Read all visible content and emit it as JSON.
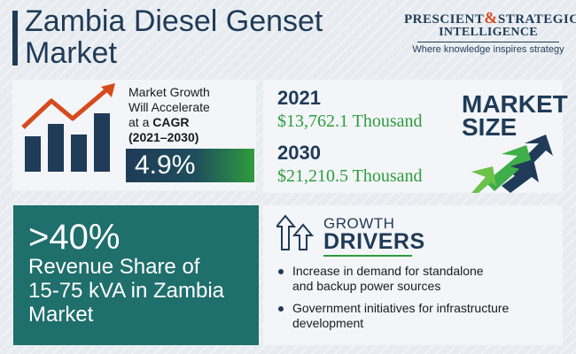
{
  "header": {
    "title_line1": "Zambia Diesel Genset",
    "title_line2": "Market"
  },
  "logo": {
    "line1_a": "PRESCIENT",
    "line1_amp": "&",
    "line1_b": "STRATEGIC",
    "line2": "INTELLIGENCE",
    "tagline": "Where knowledge inspires strategy"
  },
  "growth": {
    "line1": "Market Growth",
    "line2": "Will Accelerate",
    "line3_prefix": "at a ",
    "line3_bold": "CAGR",
    "line4": "(2021–2030)",
    "cagr": "4.9%"
  },
  "market_size": {
    "label_line1": "MARKET",
    "label_line2": "SIZE",
    "year1": "2021",
    "value1": "$13,762.1 Thousand",
    "year2": "2030",
    "value2": "$21,210.5  Thousand"
  },
  "revenue_share": {
    "percent": ">40%",
    "line1": "Revenue Share of",
    "line2": "15-75 kVA in Zambia",
    "line3": "Market"
  },
  "growth_drivers": {
    "heading_line1": "GROWTH",
    "heading_line2": "DRIVERS",
    "items": [
      {
        "line1": "Increase in demand for standalone",
        "line2": "and backup power sources"
      },
      {
        "line1": "Government initiatives for infrastructure",
        "line2": "development"
      }
    ]
  },
  "colors": {
    "navy": "#1f3b57",
    "green": "#2e9c3e",
    "teal": "#1f6f6c",
    "orange": "#d74a1c"
  }
}
